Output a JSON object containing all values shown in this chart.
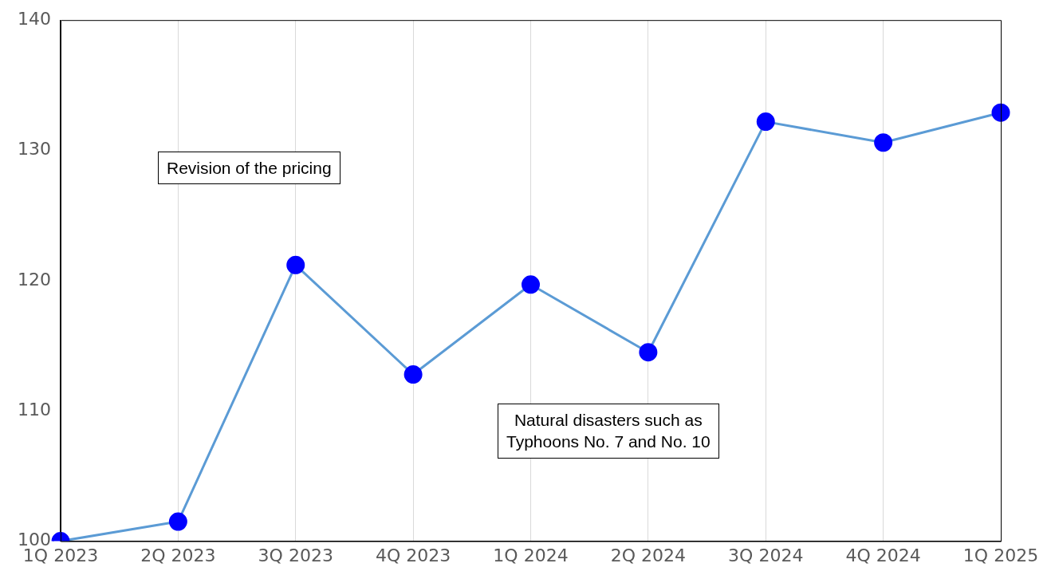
{
  "chart_data": {
    "type": "line",
    "categories": [
      "1Q 2023",
      "2Q 2023",
      "3Q 2023",
      "4Q 2023",
      "1Q 2024",
      "2Q 2024",
      "3Q 2024",
      "4Q 2024",
      "1Q 2025"
    ],
    "series": [
      {
        "color": "#5b9bd5",
        "colors": [
          "#0000ff",
          "#0000ff",
          "#0000ff",
          "#0000ff",
          "#0000ff",
          "#0000ff",
          "#0000ff",
          "#0000ff",
          "#0000ff"
        ],
        "values": [
          100,
          101.5,
          121.2,
          112.8,
          119.7,
          114.5,
          132.2,
          130.6,
          132.9
        ]
      }
    ],
    "ylim": [
      100,
      140
    ],
    "yticks": [
      100,
      110,
      120,
      130,
      140
    ],
    "grid": "x",
    "legend": false,
    "marker": "circle",
    "line_style": "solid",
    "annotations": [
      "Revision of the pricing",
      "Natural disasters such as Typhoons No. 7 and No. 10"
    ]
  }
}
